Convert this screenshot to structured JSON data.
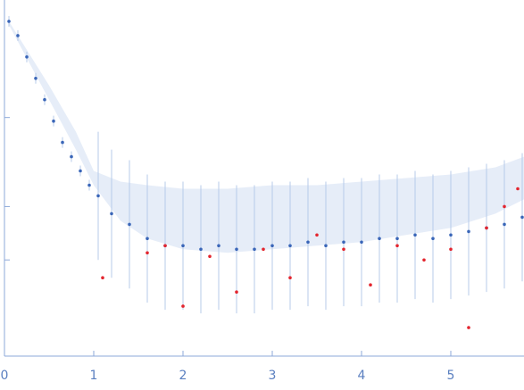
{
  "chart_data": {
    "type": "scatter",
    "title": "",
    "xlabel": "",
    "ylabel": "",
    "xlim": [
      0,
      5.82
    ],
    "ylim": [
      0,
      1
    ],
    "y_scale": "log",
    "x_ticks": [
      "0",
      "1",
      "2",
      "3",
      "4",
      "5"
    ],
    "grid": false,
    "legend": "none",
    "colors": {
      "points": "#3a66b8",
      "outliers": "#e3262f",
      "error_bars": "#b7cbea",
      "axis": "#8da9d9",
      "tick_text": "#5a7fc0"
    },
    "series": [
      {
        "role": "error-bar envelope",
        "color": "#b7cbea",
        "x": [
          0.05,
          0.5,
          0.8,
          1.0,
          1.3,
          1.6,
          2.0,
          2.5,
          3.0,
          3.5,
          4.0,
          4.5,
          5.0,
          5.5,
          5.82
        ],
        "y_lo": [
          0.93,
          0.72,
          0.58,
          0.48,
          0.38,
          0.33,
          0.3,
          0.29,
          0.3,
          0.31,
          0.32,
          0.34,
          0.36,
          0.4,
          0.44
        ],
        "y_hi": [
          0.94,
          0.76,
          0.63,
          0.52,
          0.49,
          0.48,
          0.47,
          0.47,
          0.48,
          0.48,
          0.49,
          0.5,
          0.51,
          0.53,
          0.56
        ]
      },
      {
        "role": "measured points",
        "color": "#3a66b8",
        "x": [
          0.05,
          0.15,
          0.25,
          0.35,
          0.45,
          0.55,
          0.65,
          0.75,
          0.85,
          0.95,
          1.05,
          1.2,
          1.4,
          1.6,
          1.8,
          2.0,
          2.2,
          2.4,
          2.6,
          2.8,
          3.0,
          3.2,
          3.4,
          3.6,
          3.8,
          4.0,
          4.2,
          4.4,
          4.6,
          4.8,
          5.0,
          5.2,
          5.4,
          5.6,
          5.8
        ],
        "y": [
          0.94,
          0.9,
          0.84,
          0.78,
          0.72,
          0.66,
          0.6,
          0.56,
          0.52,
          0.48,
          0.45,
          0.4,
          0.37,
          0.33,
          0.31,
          0.31,
          0.3,
          0.31,
          0.3,
          0.3,
          0.31,
          0.31,
          0.32,
          0.31,
          0.32,
          0.32,
          0.33,
          0.33,
          0.34,
          0.33,
          0.34,
          0.35,
          0.36,
          0.37,
          0.39
        ]
      },
      {
        "role": "outlier points",
        "color": "#e3262f",
        "x": [
          1.1,
          1.6,
          1.8,
          2.0,
          2.3,
          2.6,
          2.9,
          3.2,
          3.5,
          3.8,
          4.1,
          4.4,
          4.7,
          5.0,
          5.2,
          5.4,
          5.6,
          5.75
        ],
        "y": [
          0.22,
          0.29,
          0.31,
          0.14,
          0.28,
          0.18,
          0.3,
          0.22,
          0.34,
          0.3,
          0.2,
          0.31,
          0.27,
          0.3,
          0.08,
          0.36,
          0.42,
          0.47
        ]
      }
    ]
  }
}
